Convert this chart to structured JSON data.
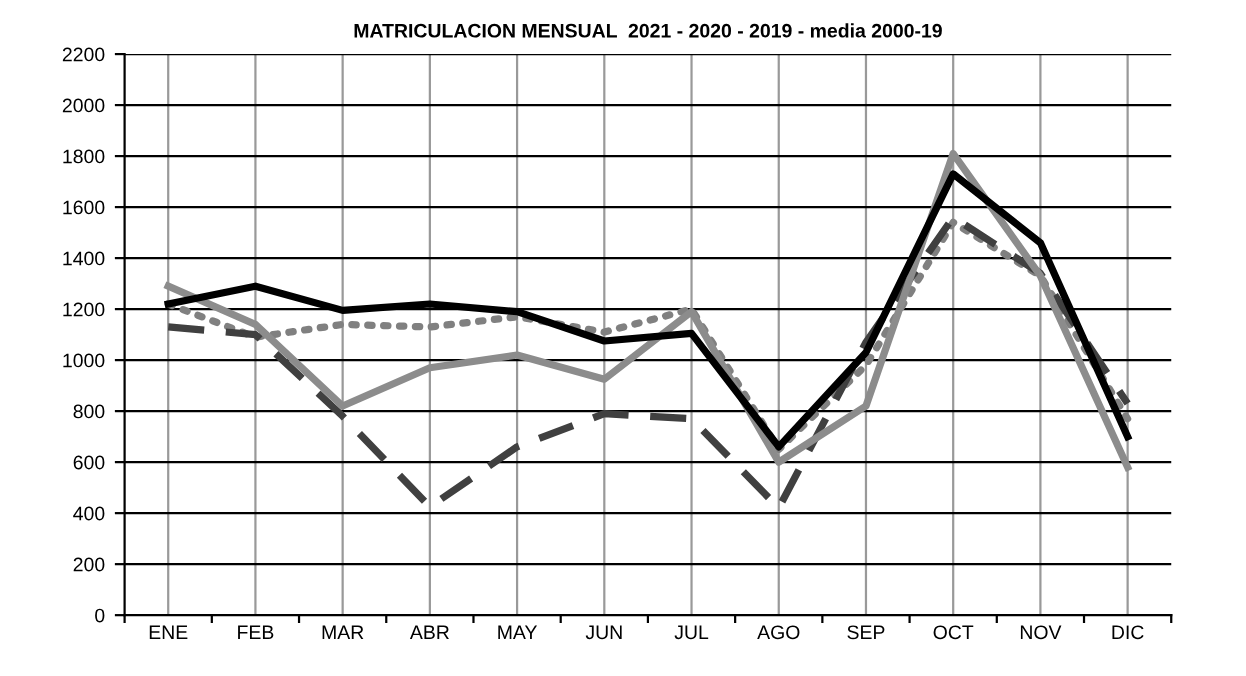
{
  "chart_data": {
    "type": "line",
    "title": "MATRICULACION MENSUAL  2021 - 2020 - 2019 - media 2000-19",
    "categories": [
      "ENE",
      "FEB",
      "MAR",
      "ABR",
      "MAY",
      "JUN",
      "JUL",
      "AGO",
      "SEP",
      "OCT",
      "NOV",
      "DIC"
    ],
    "series": [
      {
        "color": "#808080",
        "line_style": "dotted",
        "values": [
          1220,
          1090,
          1140,
          1130,
          1170,
          1110,
          1200,
          650,
          980,
          1540,
          1330,
          770
        ]
      },
      {
        "color": "#404040",
        "line_style": "dashed",
        "values": [
          1130,
          1100,
          780,
          425,
          660,
          790,
          770,
          420,
          1070,
          1560,
          1340,
          830
        ]
      },
      {
        "color": "#8c8c8c",
        "line_style": "solid",
        "values": [
          1290,
          1140,
          820,
          970,
          1020,
          925,
          1190,
          600,
          820,
          1810,
          1330,
          580
        ]
      },
      {
        "color": "#000000",
        "line_style": "solid",
        "values": [
          1220,
          1290,
          1195,
          1220,
          1190,
          1075,
          1105,
          660,
          1030,
          1730,
          1460,
          700
        ]
      }
    ],
    "ylim": [
      0,
      2200
    ],
    "yticks": [
      0,
      200,
      400,
      600,
      800,
      1000,
      1200,
      1400,
      1600,
      1800,
      2000,
      2200
    ],
    "grid": true,
    "legend": false,
    "marker": "none"
  }
}
